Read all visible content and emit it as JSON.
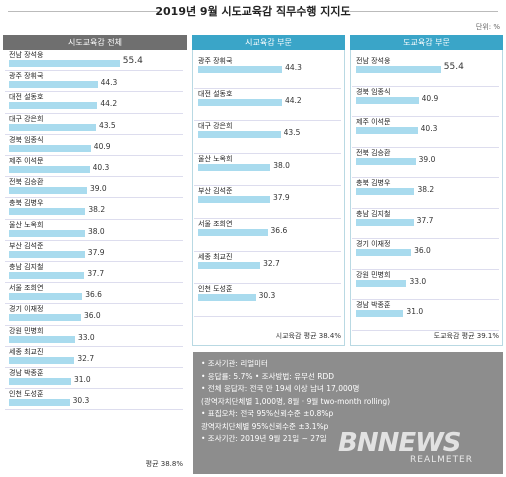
{
  "title": "2019년 9월 시도교육감 직무수행 지지도",
  "unit": "단위: %",
  "colors": {
    "header_left": "#6f6f6f",
    "header_teal": "#3aa5c8",
    "bar": "#a9dbee",
    "info_bg": "#8d8d8d"
  },
  "chart_data": [
    {
      "type": "bar",
      "title": "시도교육감 전체",
      "categories": [
        "전남 장석웅",
        "광주 장휘국",
        "대전 설동호",
        "대구 강은희",
        "경북 임종식",
        "제주 이석문",
        "전북 김승환",
        "충북 김병우",
        "울산 노옥희",
        "부산 김석준",
        "충남 김지철",
        "서울 조희연",
        "경기 이재정",
        "강원 민병희",
        "세종 최교진",
        "경남 박종훈",
        "인천 도성훈"
      ],
      "values": [
        55.4,
        44.3,
        44.2,
        43.5,
        40.9,
        40.3,
        39.0,
        38.2,
        38.0,
        37.9,
        37.7,
        36.6,
        36.0,
        33.0,
        32.7,
        31.0,
        30.3
      ],
      "value_labels": [
        "55.4",
        "44.3",
        "44.2",
        "43.5",
        "40.9",
        "40.3",
        "39.0",
        "38.2",
        "38.0",
        "37.9",
        "37.7",
        "36.6",
        "36.0",
        "33.0",
        "32.7",
        "31.0",
        "30.3"
      ],
      "average_label": "평균 38.8%",
      "xlim": [
        0,
        60
      ]
    },
    {
      "type": "bar",
      "title": "시교육감 부문",
      "categories": [
        "광주 장휘국",
        "대전 설동호",
        "대구 강은희",
        "울산 노옥희",
        "부산 김석준",
        "서울 조희연",
        "세종 최교진",
        "인천 도성훈"
      ],
      "values": [
        44.3,
        44.2,
        43.5,
        38.0,
        37.9,
        36.6,
        32.7,
        30.3
      ],
      "value_labels": [
        "44.3",
        "44.2",
        "43.5",
        "38.0",
        "37.9",
        "36.6",
        "32.7",
        "30.3"
      ],
      "average_label": "시교육감 평균 38.4%",
      "xlim": [
        0,
        60
      ]
    },
    {
      "type": "bar",
      "title": "도교육감 부문",
      "categories": [
        "전남 장석웅",
        "경북 임종식",
        "제주 이석문",
        "전북 김승환",
        "충북 김병우",
        "충남 김지철",
        "경기 이재정",
        "강원 민병희",
        "경남 박종훈"
      ],
      "values": [
        55.4,
        40.9,
        40.3,
        39.0,
        38.2,
        37.7,
        36.0,
        33.0,
        31.0
      ],
      "value_labels": [
        "55.4",
        "40.9",
        "40.3",
        "39.0",
        "38.2",
        "37.7",
        "36.0",
        "33.0",
        "31.0"
      ],
      "average_label": "도교육감 평균 39.1%",
      "xlim": [
        0,
        60
      ]
    }
  ],
  "info": [
    "• 조사기관: 리얼미터",
    "• 응답률: 5.7% • 조사방법: 유무선 RDD",
    "• 전체 응답자: 전국 만 19세 이상 남녀 17,000명",
    "   (광역자치단체별 1,000명, 8월 · 9월 two-month rolling)",
    "• 표집오차: 전국 95%신뢰수준 ±0.8%p",
    "   광역자치단체별 95%신뢰수준 ±3.1%p",
    "• 조사기간: 2019년 9월 21일 ~ 27일"
  ],
  "watermark": {
    "main": "BNNEWS",
    "sub": "REALMETER"
  }
}
